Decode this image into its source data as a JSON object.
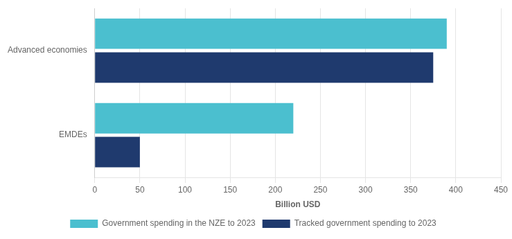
{
  "chart_data": {
    "type": "bar",
    "orientation": "horizontal",
    "categories": [
      "EMDEs",
      "Advanced economies"
    ],
    "series": [
      {
        "name": "Government spending in the NZE to 2023",
        "color": "#4BBFCF",
        "values": [
          220,
          390
        ]
      },
      {
        "name": "Tracked government spending to 2023",
        "color": "#1F3A6E",
        "values": [
          50,
          375
        ]
      }
    ],
    "xlabel": "Billion USD",
    "xlim": [
      0,
      450
    ],
    "xticks": [
      0,
      50,
      100,
      150,
      200,
      250,
      300,
      350,
      400,
      450
    ],
    "grid": true,
    "legend": "bottom"
  }
}
